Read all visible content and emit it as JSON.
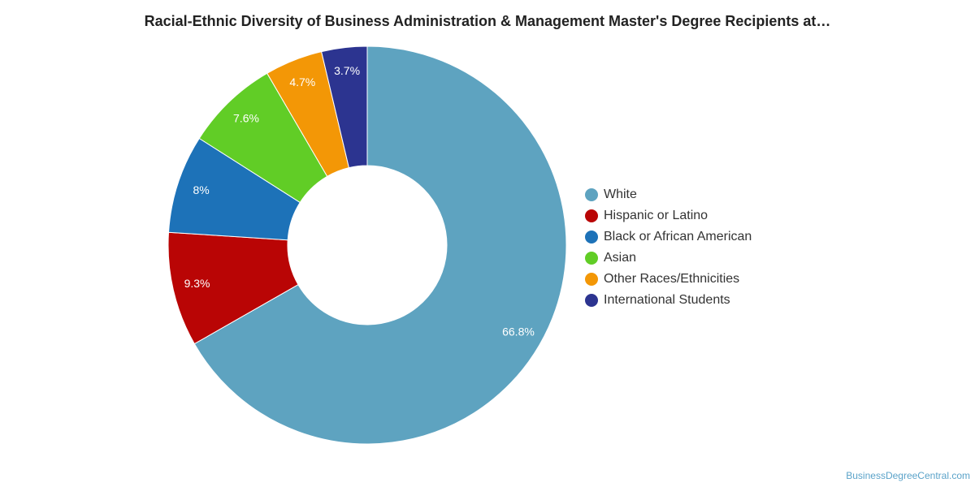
{
  "chart_data": {
    "type": "pie",
    "title": "Racial-Ethnic Diversity of Business Administration & Management Master's Degree Recipients at…",
    "categories": [
      "White",
      "Hispanic or Latino",
      "Black or African American",
      "Asian",
      "Other Races/Ethnicities",
      "International Students"
    ],
    "values": [
      66.8,
      9.3,
      8.0,
      7.6,
      4.7,
      3.7
    ],
    "data_labels": [
      "66.8%",
      "9.3%",
      "8%",
      "7.6%",
      "4.7%",
      "3.7%"
    ],
    "colors": [
      "#5ea3c0",
      "#b90505",
      "#1d72b8",
      "#61cd26",
      "#f39706",
      "#2c3490"
    ],
    "legend_position": "right",
    "donut": true
  },
  "credit": "BusinessDegreeCentral.com"
}
